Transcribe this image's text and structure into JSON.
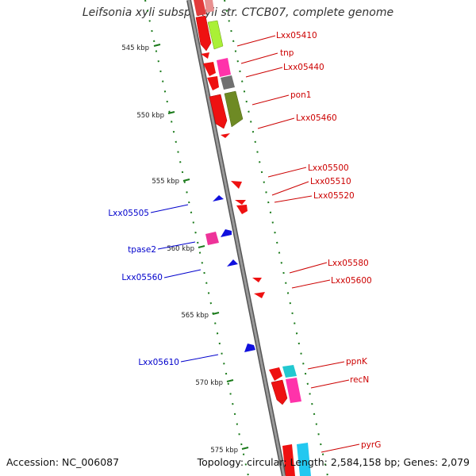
{
  "title": "Leifsonia xyli subsp. xyli str. CTCB07, complete genome",
  "accession": "Accession: NC_006087",
  "stats": "Topology: circular; Length: 2,584,158 bp; Genes: 2,079",
  "colors": {
    "forward_label": "#cc0000",
    "reverse_label": "#0000cc",
    "backbone": "#8a8a8a",
    "tick": "#1a7a1a"
  },
  "ticks": [
    "545 kbp",
    "550 kbp",
    "555 kbp",
    "560 kbp",
    "565 kbp",
    "570 kbp",
    "575 kbp"
  ],
  "forward_genes": [
    "Lxx05410",
    "tnp",
    "Lxx05440",
    "pon1",
    "Lxx05460",
    "Lxx05500",
    "Lxx05510",
    "Lxx05520",
    "Lxx05580",
    "Lxx05600",
    "ppnK",
    "recN",
    "pyrG"
  ],
  "reverse_genes": [
    "Lxx05505",
    "tpase2",
    "Lxx05560",
    "Lxx05610"
  ]
}
